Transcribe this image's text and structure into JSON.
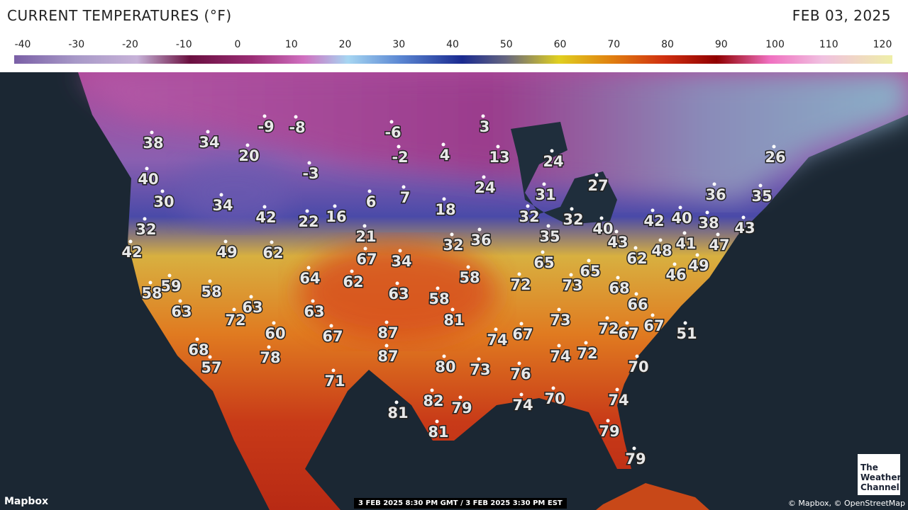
{
  "header": {
    "title": "CURRENT TEMPERATURES (°F)",
    "date": "FEB 03, 2025"
  },
  "scale": {
    "ticks": [
      -40,
      -30,
      -20,
      -10,
      0,
      10,
      20,
      30,
      40,
      50,
      60,
      70,
      80,
      90,
      100,
      110,
      120
    ]
  },
  "temperatures": [
    38,
    34,
    -9,
    -8,
    20,
    -6,
    3,
    -2,
    4,
    13,
    24,
    26,
    40,
    -3,
    24,
    27,
    31,
    30,
    34,
    6,
    7,
    18,
    36,
    35,
    42,
    22,
    16,
    32,
    32,
    40,
    42,
    40,
    38,
    43,
    32,
    21,
    32,
    36,
    35,
    43,
    41,
    47,
    42,
    49,
    62,
    67,
    34,
    65,
    62,
    48,
    49,
    64,
    62,
    58,
    72,
    73,
    65,
    68,
    46,
    58,
    59,
    58,
    63,
    58,
    66,
    63,
    63,
    72,
    63,
    81,
    73,
    72,
    67,
    67,
    51,
    60,
    67,
    87,
    74,
    67,
    68,
    87,
    74,
    72,
    78,
    57,
    80,
    73,
    76,
    70,
    71,
    70,
    74,
    82,
    79,
    74,
    81,
    81,
    79,
    79
  ],
  "footer": {
    "provider": "Mapbox",
    "timestamp": "3 FEB 2025 8:30 PM GMT / 3 FEB 2025 3:30 PM EST",
    "attribution": "© Mapbox, © OpenStreetMap",
    "logo": [
      "The",
      "Weather",
      "Channel"
    ]
  }
}
